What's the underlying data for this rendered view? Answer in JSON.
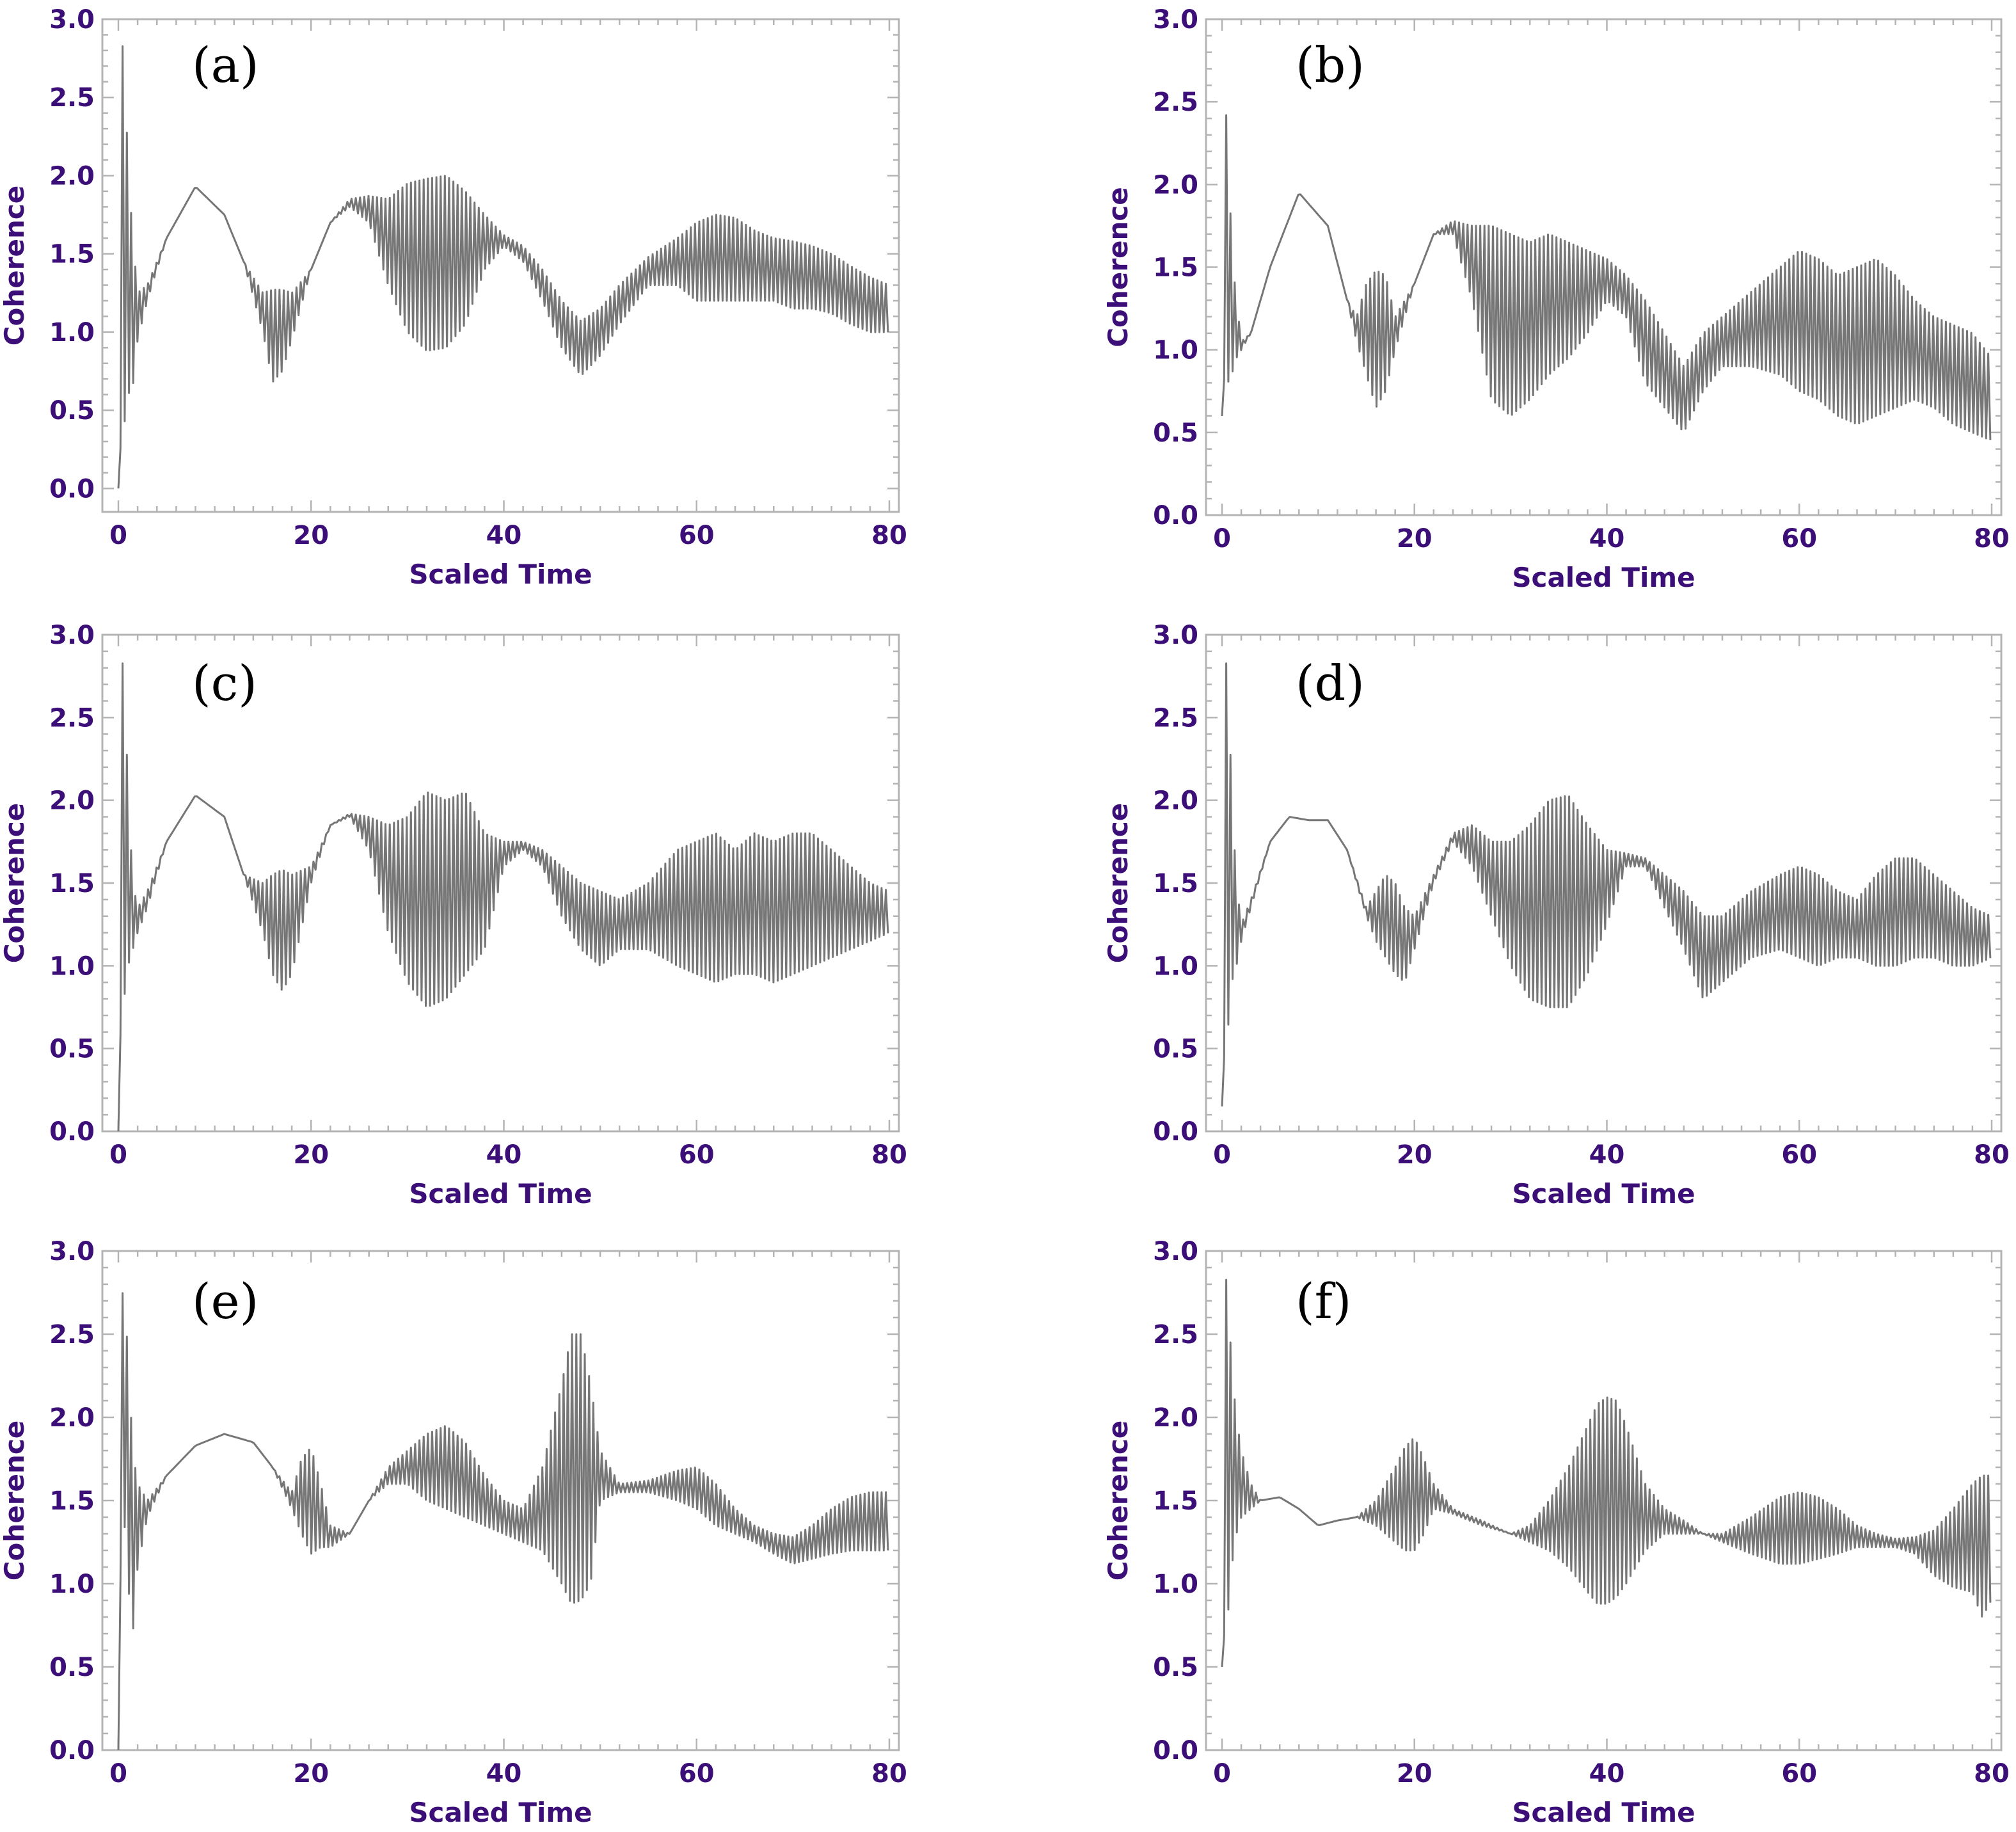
{
  "colors": {
    "line": "#767676",
    "axis_text": "#3c0f78",
    "frame": "#b4b4b4"
  },
  "chart_data": [
    {
      "panel": "(a)",
      "type": "line",
      "xlabel": "Scaled Time",
      "ylabel": "Coherence",
      "xlim": [
        0,
        80
      ],
      "ylim": [
        -0.15,
        3.0
      ],
      "xticks": [
        "0",
        "20",
        "40",
        "60",
        "80"
      ],
      "yticks": [
        "0.0",
        "0.5",
        "1.0",
        "1.5",
        "2.0",
        "2.5",
        "3.0"
      ],
      "series": [
        {
          "name": "Coherence",
          "envelope_x": [
            0,
            0.3,
            0.6,
            1,
            1.5,
            2,
            3,
            5,
            8,
            11,
            13,
            15,
            16,
            17,
            18,
            20,
            22,
            24,
            26,
            28,
            30,
            32,
            34,
            36,
            38,
            40,
            42,
            44,
            46,
            48,
            50,
            52,
            55,
            58,
            60,
            62,
            64,
            66,
            68,
            70,
            72,
            74,
            76,
            78,
            80
          ],
          "envelope_upper": [
            0,
            2.85,
            2.8,
            2.05,
            1.6,
            1.25,
            1.3,
            1.6,
            1.93,
            1.75,
            1.45,
            1.25,
            1.27,
            1.27,
            1.25,
            1.4,
            1.7,
            1.85,
            1.87,
            1.85,
            1.95,
            1.98,
            2.0,
            1.9,
            1.75,
            1.62,
            1.55,
            1.4,
            1.2,
            1.07,
            1.15,
            1.3,
            1.48,
            1.6,
            1.7,
            1.75,
            1.73,
            1.65,
            1.6,
            1.58,
            1.55,
            1.5,
            1.42,
            1.35,
            1.3
          ],
          "envelope_lower": [
            0,
            0.35,
            0.4,
            0.6,
            0.65,
            0.95,
            1.2,
            1.6,
            1.93,
            1.75,
            1.45,
            1.0,
            0.68,
            0.75,
            0.95,
            1.4,
            1.7,
            1.8,
            1.7,
            1.3,
            1.0,
            0.88,
            0.9,
            1.05,
            1.4,
            1.55,
            1.45,
            1.2,
            0.9,
            0.72,
            0.85,
            1.05,
            1.3,
            1.3,
            1.2,
            1.2,
            1.2,
            1.2,
            1.2,
            1.15,
            1.15,
            1.12,
            1.05,
            1.0,
            1.0
          ]
        }
      ]
    },
    {
      "panel": "(b)",
      "type": "line",
      "xlabel": "Scaled Time",
      "ylabel": "Coherence",
      "xlim": [
        0,
        80
      ],
      "ylim": [
        0.0,
        3.0
      ],
      "xticks": [
        "0",
        "20",
        "40",
        "60",
        "80"
      ],
      "yticks": [
        "0.0",
        "0.5",
        "1.0",
        "1.5",
        "2.0",
        "2.5",
        "3.0"
      ],
      "series": [
        {
          "name": "Coherence",
          "envelope_x": [
            0,
            0.3,
            0.6,
            1,
            1.5,
            2,
            3,
            5,
            8,
            11,
            13,
            14,
            15,
            16,
            17,
            18,
            20,
            22,
            24,
            26,
            28,
            30,
            32,
            34,
            36,
            38,
            40,
            42,
            44,
            46,
            48,
            50,
            52,
            55,
            58,
            60,
            62,
            64,
            66,
            68,
            70,
            72,
            74,
            76,
            78,
            80
          ],
          "envelope_upper": [
            0.6,
            2.48,
            2.35,
            1.6,
            1.3,
            1.05,
            1.1,
            1.5,
            1.95,
            1.75,
            1.3,
            1.2,
            1.4,
            1.48,
            1.45,
            1.2,
            1.4,
            1.7,
            1.78,
            1.75,
            1.75,
            1.7,
            1.65,
            1.7,
            1.65,
            1.6,
            1.55,
            1.45,
            1.3,
            1.1,
            0.9,
            1.1,
            1.2,
            1.35,
            1.5,
            1.6,
            1.55,
            1.45,
            1.5,
            1.55,
            1.45,
            1.3,
            1.2,
            1.15,
            1.1,
            0.95
          ],
          "envelope_lower": [
            0.6,
            0.9,
            0.8,
            0.85,
            0.95,
            1.0,
            1.1,
            1.5,
            1.95,
            1.75,
            1.3,
            1.05,
            0.85,
            0.65,
            0.75,
            1.0,
            1.4,
            1.7,
            1.7,
            1.3,
            0.7,
            0.6,
            0.7,
            0.85,
            0.95,
            1.1,
            1.3,
            1.2,
            0.8,
            0.65,
            0.5,
            0.75,
            0.9,
            0.9,
            0.85,
            0.75,
            0.7,
            0.6,
            0.55,
            0.6,
            0.65,
            0.7,
            0.65,
            0.55,
            0.5,
            0.45
          ]
        }
      ]
    },
    {
      "panel": "(c)",
      "type": "line",
      "xlabel": "Scaled Time",
      "ylabel": "Coherence",
      "xlim": [
        0,
        80
      ],
      "ylim": [
        0.0,
        3.0
      ],
      "xticks": [
        "0",
        "20",
        "40",
        "60",
        "80"
      ],
      "yticks": [
        "0.0",
        "0.5",
        "1.0",
        "1.5",
        "2.0",
        "2.5",
        "3.0"
      ],
      "series": [
        {
          "name": "Coherence",
          "envelope_x": [
            0,
            0.3,
            0.6,
            1,
            1.5,
            2,
            3,
            5,
            8,
            11,
            13,
            15,
            16,
            17,
            18,
            20,
            22,
            24,
            26,
            28,
            30,
            32,
            34,
            36,
            38,
            40,
            42,
            44,
            46,
            48,
            50,
            52,
            55,
            58,
            60,
            62,
            64,
            66,
            68,
            70,
            72,
            74,
            76,
            78,
            80
          ],
          "envelope_upper": [
            0,
            2.85,
            2.8,
            2.05,
            1.5,
            1.35,
            1.45,
            1.75,
            2.03,
            1.9,
            1.55,
            1.5,
            1.55,
            1.58,
            1.55,
            1.6,
            1.85,
            1.92,
            1.9,
            1.85,
            1.9,
            2.05,
            2.0,
            2.05,
            1.8,
            1.75,
            1.75,
            1.7,
            1.6,
            1.5,
            1.45,
            1.4,
            1.5,
            1.7,
            1.75,
            1.8,
            1.7,
            1.8,
            1.75,
            1.8,
            1.8,
            1.7,
            1.6,
            1.5,
            1.45
          ],
          "envelope_lower": [
            0,
            0.8,
            0.8,
            1.0,
            1.1,
            1.2,
            1.35,
            1.75,
            2.03,
            1.9,
            1.55,
            1.2,
            0.95,
            0.85,
            0.95,
            1.5,
            1.85,
            1.9,
            1.7,
            1.2,
            0.9,
            0.75,
            0.8,
            0.95,
            1.1,
            1.6,
            1.7,
            1.6,
            1.3,
            1.1,
            1.0,
            1.1,
            1.1,
            1.0,
            0.95,
            0.9,
            0.95,
            0.95,
            0.9,
            0.95,
            1.0,
            1.05,
            1.1,
            1.15,
            1.2
          ]
        }
      ]
    },
    {
      "panel": "(d)",
      "type": "line",
      "xlabel": "Scaled Time",
      "ylabel": "Coherence",
      "xlim": [
        0,
        80
      ],
      "ylim": [
        0.0,
        3.0
      ],
      "xticks": [
        "0",
        "20",
        "40",
        "60",
        "80"
      ],
      "yticks": [
        "0.0",
        "0.5",
        "1.0",
        "1.5",
        "2.0",
        "2.5",
        "3.0"
      ],
      "series": [
        {
          "name": "Coherence",
          "envelope_x": [
            0,
            0.3,
            0.6,
            1,
            1.5,
            2,
            3,
            5,
            7,
            9,
            11,
            13,
            15,
            16,
            17,
            18,
            19,
            20,
            22,
            24,
            26,
            28,
            30,
            32,
            34,
            36,
            38,
            40,
            42,
            44,
            46,
            48,
            50,
            52,
            55,
            58,
            60,
            62,
            64,
            66,
            68,
            70,
            72,
            74,
            76,
            78,
            80
          ],
          "envelope_upper": [
            0.15,
            2.85,
            2.8,
            2.05,
            1.5,
            1.25,
            1.4,
            1.75,
            1.9,
            1.88,
            1.88,
            1.7,
            1.35,
            1.45,
            1.55,
            1.5,
            1.35,
            1.3,
            1.55,
            1.8,
            1.85,
            1.75,
            1.75,
            1.85,
            2.0,
            2.03,
            1.85,
            1.7,
            1.68,
            1.65,
            1.55,
            1.45,
            1.3,
            1.3,
            1.45,
            1.55,
            1.6,
            1.55,
            1.45,
            1.4,
            1.55,
            1.65,
            1.65,
            1.55,
            1.45,
            1.35,
            1.3
          ],
          "envelope_lower": [
            0.15,
            0.55,
            0.6,
            0.9,
            1.0,
            1.15,
            1.35,
            1.75,
            1.9,
            1.88,
            1.88,
            1.7,
            1.3,
            1.15,
            1.05,
            0.95,
            0.9,
            1.1,
            1.5,
            1.75,
            1.6,
            1.3,
            1.0,
            0.8,
            0.75,
            0.75,
            0.95,
            1.25,
            1.6,
            1.6,
            1.35,
            1.1,
            0.8,
            0.9,
            1.05,
            1.1,
            1.05,
            1.0,
            1.05,
            1.05,
            1.0,
            1.0,
            1.05,
            1.05,
            1.0,
            1.0,
            1.05
          ]
        }
      ]
    },
    {
      "panel": "(e)",
      "type": "line",
      "xlabel": "Scaled Time",
      "ylabel": "Coherence",
      "xlim": [
        0,
        80
      ],
      "ylim": [
        0.0,
        3.0
      ],
      "xticks": [
        "0",
        "20",
        "40",
        "60",
        "80"
      ],
      "yticks": [
        "0.0",
        "0.5",
        "1.0",
        "1.5",
        "2.0",
        "2.5",
        "3.0"
      ],
      "series": [
        {
          "name": "Coherence",
          "envelope_x": [
            0,
            0.3,
            0.6,
            1,
            1.5,
            2,
            3,
            5,
            8,
            11,
            14,
            16,
            18,
            19,
            20,
            21,
            22,
            24,
            26,
            28,
            30,
            32,
            34,
            36,
            38,
            40,
            42,
            44,
            46,
            47,
            48,
            49,
            50,
            52,
            55,
            58,
            60,
            62,
            64,
            66,
            68,
            70,
            72,
            74,
            76,
            78,
            80
          ],
          "envelope_upper": [
            0,
            2.7,
            2.8,
            2.35,
            1.8,
            1.6,
            1.5,
            1.65,
            1.83,
            1.9,
            1.85,
            1.7,
            1.55,
            1.75,
            1.82,
            1.6,
            1.35,
            1.3,
            1.5,
            1.7,
            1.8,
            1.9,
            1.95,
            1.85,
            1.65,
            1.5,
            1.45,
            1.7,
            2.2,
            2.5,
            2.5,
            2.2,
            1.8,
            1.6,
            1.62,
            1.68,
            1.7,
            1.6,
            1.45,
            1.35,
            1.3,
            1.28,
            1.35,
            1.45,
            1.52,
            1.55,
            1.55
          ],
          "envelope_lower": [
            0,
            1.4,
            1.4,
            1.0,
            0.7,
            1.1,
            1.4,
            1.65,
            1.83,
            1.9,
            1.85,
            1.7,
            1.45,
            1.3,
            1.18,
            1.22,
            1.22,
            1.3,
            1.5,
            1.6,
            1.6,
            1.5,
            1.45,
            1.4,
            1.35,
            1.3,
            1.25,
            1.2,
            1.0,
            0.88,
            0.9,
            1.0,
            1.5,
            1.55,
            1.55,
            1.5,
            1.45,
            1.35,
            1.3,
            1.25,
            1.18,
            1.12,
            1.15,
            1.18,
            1.2,
            1.2,
            1.2
          ]
        }
      ]
    },
    {
      "panel": "(f)",
      "type": "line",
      "xlabel": "Scaled Time",
      "ylabel": "Coherence",
      "xlim": [
        0,
        80
      ],
      "ylim": [
        0.0,
        3.0
      ],
      "xticks": [
        "0",
        "20",
        "40",
        "60",
        "80"
      ],
      "yticks": [
        "0.0",
        "0.5",
        "1.0",
        "1.5",
        "2.0",
        "2.5",
        "3.0"
      ],
      "series": [
        {
          "name": "Coherence",
          "envelope_x": [
            0,
            0.3,
            0.6,
            1,
            1.5,
            2,
            3,
            4,
            6,
            8,
            10,
            12,
            14,
            16,
            18,
            19,
            20,
            21,
            22,
            24,
            27,
            30,
            32,
            34,
            36,
            38,
            39,
            40,
            41,
            42,
            44,
            46,
            48,
            50,
            52,
            55,
            58,
            60,
            62,
            64,
            66,
            68,
            70,
            72,
            74,
            76,
            78,
            79,
            80
          ],
          "envelope_upper": [
            0.5,
            2.85,
            2.8,
            2.3,
            2.0,
            1.8,
            1.6,
            1.5,
            1.52,
            1.45,
            1.35,
            1.38,
            1.4,
            1.5,
            1.7,
            1.82,
            1.88,
            1.75,
            1.6,
            1.45,
            1.38,
            1.3,
            1.35,
            1.5,
            1.7,
            1.95,
            2.08,
            2.12,
            2.1,
            1.95,
            1.6,
            1.45,
            1.38,
            1.3,
            1.3,
            1.4,
            1.52,
            1.55,
            1.52,
            1.45,
            1.35,
            1.3,
            1.27,
            1.28,
            1.32,
            1.45,
            1.6,
            1.65,
            1.65
          ],
          "envelope_lower": [
            0.5,
            0.75,
            0.8,
            1.1,
            1.3,
            1.4,
            1.45,
            1.5,
            1.52,
            1.45,
            1.35,
            1.38,
            1.4,
            1.35,
            1.25,
            1.2,
            1.2,
            1.3,
            1.45,
            1.42,
            1.35,
            1.3,
            1.25,
            1.2,
            1.1,
            0.95,
            0.88,
            0.88,
            0.92,
            1.0,
            1.2,
            1.3,
            1.3,
            1.3,
            1.25,
            1.18,
            1.12,
            1.12,
            1.15,
            1.18,
            1.22,
            1.22,
            1.22,
            1.18,
            1.05,
            0.98,
            0.95,
            0.8,
            0.9
          ]
        }
      ]
    }
  ]
}
